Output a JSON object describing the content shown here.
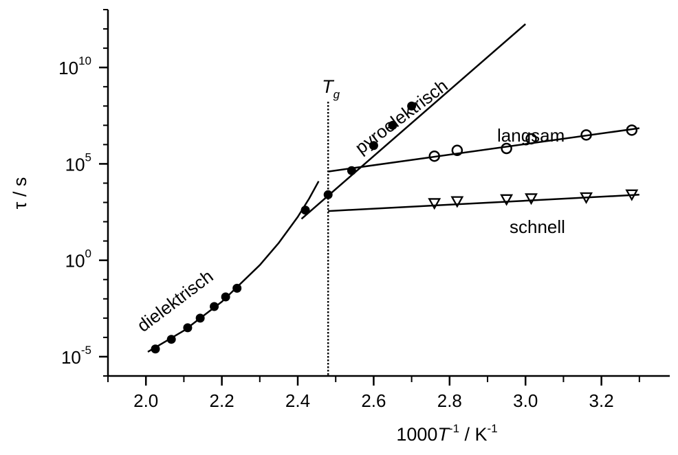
{
  "chart_data": {
    "type": "scatter",
    "title": "",
    "xlabel": {
      "main": "1000",
      "italic": "T",
      "sup1": "-1",
      "mid": " / K",
      "sup2": "-1"
    },
    "ylabel": "τ / s",
    "xlim": [
      1.9,
      3.38
    ],
    "ylim_log10": [
      -6,
      13
    ],
    "y_scale": "log",
    "grid": false,
    "x_ticks": [
      {
        "value": 2.0,
        "label": "2.0"
      },
      {
        "value": 2.2,
        "label": "2.2"
      },
      {
        "value": 2.4,
        "label": "2.4"
      },
      {
        "value": 2.6,
        "label": "2.6"
      },
      {
        "value": 2.8,
        "label": "2.8"
      },
      {
        "value": 3.0,
        "label": "3.0"
      },
      {
        "value": 3.2,
        "label": "3.2"
      }
    ],
    "y_ticks": [
      {
        "exp": -5,
        "base": "10",
        "sup": "-5"
      },
      {
        "exp": 0,
        "base": "10",
        "sup": "0"
      },
      {
        "exp": 5,
        "base": "10",
        "sup": "5"
      },
      {
        "exp": 10,
        "base": "10",
        "sup": "10"
      }
    ],
    "tg_marker": {
      "x": 2.48,
      "label": "T",
      "label_sub": "g"
    },
    "series": [
      {
        "name": "dielektrisch",
        "marker": "filled-circle",
        "points": [
          {
            "x": 2.025,
            "y_log10": -4.6
          },
          {
            "x": 2.067,
            "y_log10": -4.1
          },
          {
            "x": 2.11,
            "y_log10": -3.5
          },
          {
            "x": 2.143,
            "y_log10": -3.0
          },
          {
            "x": 2.18,
            "y_log10": -2.4
          },
          {
            "x": 2.21,
            "y_log10": -1.9
          },
          {
            "x": 2.24,
            "y_log10": -1.45
          },
          {
            "x": 2.42,
            "y_log10": 2.6
          }
        ],
        "fit_curve": [
          {
            "x": 2.005,
            "y_log10": -4.75
          },
          {
            "x": 2.1,
            "y_log10": -3.65
          },
          {
            "x": 2.2,
            "y_log10": -2.15
          },
          {
            "x": 2.3,
            "y_log10": -0.25
          },
          {
            "x": 2.35,
            "y_log10": 0.9
          },
          {
            "x": 2.4,
            "y_log10": 2.25
          },
          {
            "x": 2.43,
            "y_log10": 3.2
          },
          {
            "x": 2.455,
            "y_log10": 4.1
          }
        ]
      },
      {
        "name": "pyroelektrisch",
        "marker": "filled-circle",
        "points": [
          {
            "x": 2.48,
            "y_log10": 3.4
          },
          {
            "x": 2.542,
            "y_log10": 4.65
          },
          {
            "x": 2.6,
            "y_log10": 5.95
          },
          {
            "x": 2.65,
            "y_log10": 7.0
          },
          {
            "x": 2.7,
            "y_log10": 8.0
          }
        ],
        "fit_line": [
          {
            "x": 2.41,
            "y_log10": 2.15
          },
          {
            "x": 3.0,
            "y_log10": 12.25
          }
        ]
      },
      {
        "name": "langsam",
        "marker": "open-circle",
        "points": [
          {
            "x": 2.76,
            "y_log10": 5.4
          },
          {
            "x": 2.82,
            "y_log10": 5.7
          },
          {
            "x": 2.95,
            "y_log10": 5.8
          },
          {
            "x": 3.015,
            "y_log10": 6.3
          },
          {
            "x": 3.16,
            "y_log10": 6.5
          },
          {
            "x": 3.28,
            "y_log10": 6.75
          }
        ],
        "fit_line": [
          {
            "x": 2.48,
            "y_log10": 4.6
          },
          {
            "x": 3.3,
            "y_log10": 6.85
          }
        ]
      },
      {
        "name": "schnell",
        "marker": "open-triangle-down",
        "points": [
          {
            "x": 2.76,
            "y_log10": 2.95
          },
          {
            "x": 2.82,
            "y_log10": 3.05
          },
          {
            "x": 2.95,
            "y_log10": 3.15
          },
          {
            "x": 3.015,
            "y_log10": 3.2
          },
          {
            "x": 3.16,
            "y_log10": 3.25
          },
          {
            "x": 3.28,
            "y_log10": 3.4
          }
        ],
        "fit_line": [
          {
            "x": 2.48,
            "y_log10": 2.55
          },
          {
            "x": 3.3,
            "y_log10": 3.4
          }
        ]
      }
    ]
  }
}
